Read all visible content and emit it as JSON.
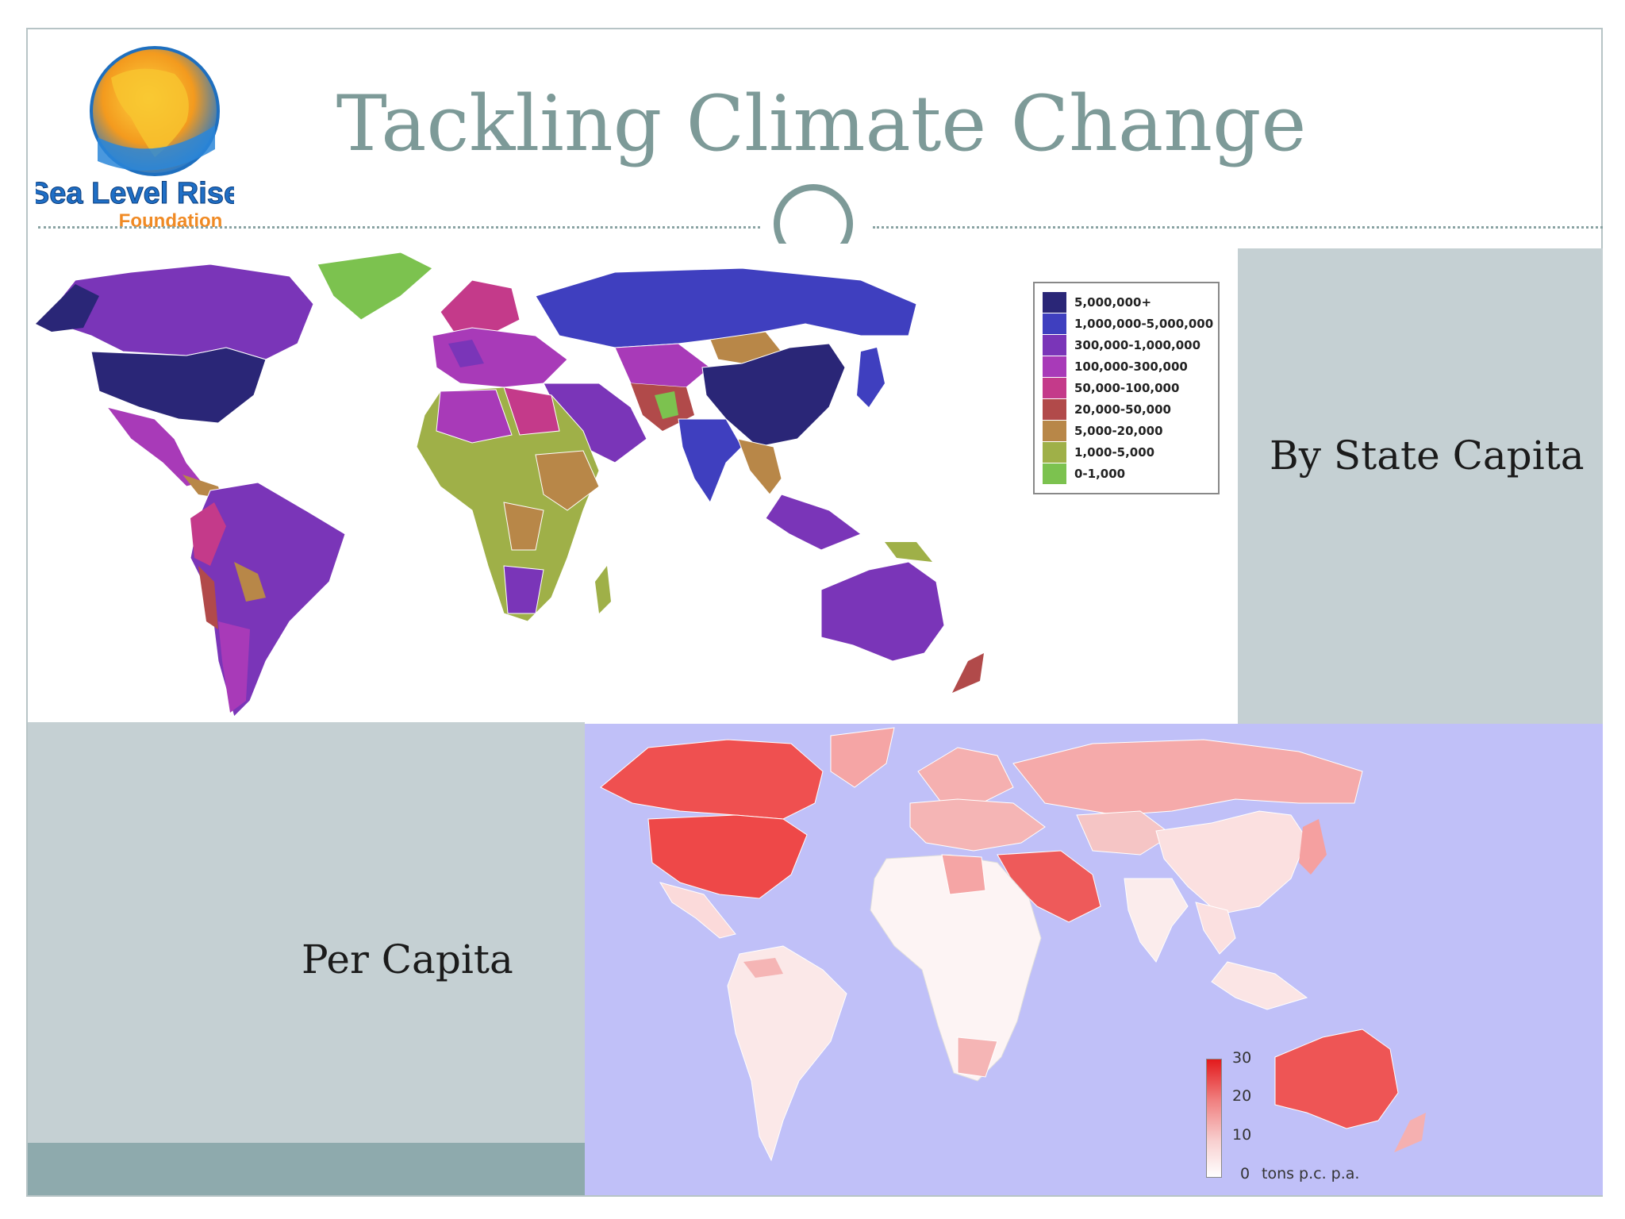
{
  "slide": {
    "title": "Tackling Climate Change",
    "logo": {
      "line1": "Sea Level Rise",
      "line2": "Foundation"
    }
  },
  "top_map": {
    "label": "By State Capita",
    "legend": [
      {
        "label": "5,000,000+",
        "color": "#2a2677"
      },
      {
        "label": "1,000,000-5,000,000",
        "color": "#3f3fbf"
      },
      {
        "label": "300,000-1,000,000",
        "color": "#7a35b8"
      },
      {
        "label": "100,000-300,000",
        "color": "#a83ab8"
      },
      {
        "label": "50,000-100,000",
        "color": "#c43a8a"
      },
      {
        "label": "20,000-50,000",
        "color": "#b14a4a"
      },
      {
        "label": "5,000-20,000",
        "color": "#b88748"
      },
      {
        "label": "1,000-5,000",
        "color": "#9fb048"
      },
      {
        "label": "0-1,000",
        "color": "#7cc24f"
      }
    ]
  },
  "bottom_map": {
    "label": "Per Capita",
    "scale": {
      "ticks": [
        "30",
        "20",
        "10",
        "0"
      ],
      "unit": "tons p.c. p.a."
    }
  },
  "colors": {
    "title": "#7d9a98",
    "panel": "#c5d0d3",
    "panel_dark": "#8eaaad",
    "ocean": "#c0c0f8"
  }
}
